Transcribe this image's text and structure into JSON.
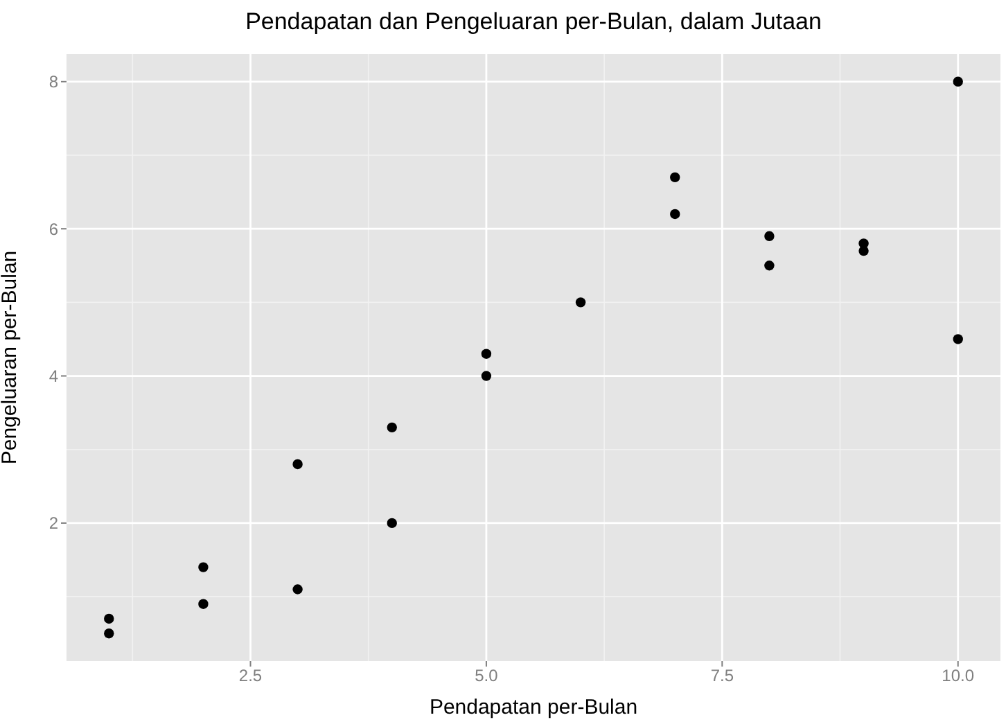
{
  "chart_data": {
    "type": "scatter",
    "title": "Pendapatan dan Pengeluaran per-Bulan, dalam Jutaan",
    "xlabel": "Pendapatan per-Bulan",
    "ylabel": "Pengeluaran per-Bulan",
    "x": [
      1,
      1,
      2,
      2,
      3,
      3,
      4,
      4,
      5,
      5,
      6,
      7,
      7,
      8,
      8,
      9,
      9,
      10,
      10
    ],
    "values": [
      0.7,
      0.5,
      1.4,
      0.9,
      2.8,
      1.1,
      3.3,
      2.0,
      4.3,
      4.0,
      5.0,
      6.7,
      6.2,
      5.9,
      5.5,
      5.8,
      5.7,
      8.0,
      4.5
    ],
    "color": "#000000",
    "marker": "circle",
    "xlim": [
      0.55,
      10.45
    ],
    "xticks": [
      2.5,
      {
        "value": 5,
        "label": "5.0"
      },
      7.5,
      {
        "value": 10,
        "label": "10.0"
      }
    ],
    "ylim": [
      0.125,
      8.375
    ],
    "yticks": [
      2,
      4,
      6,
      8
    ],
    "grid": true
  }
}
